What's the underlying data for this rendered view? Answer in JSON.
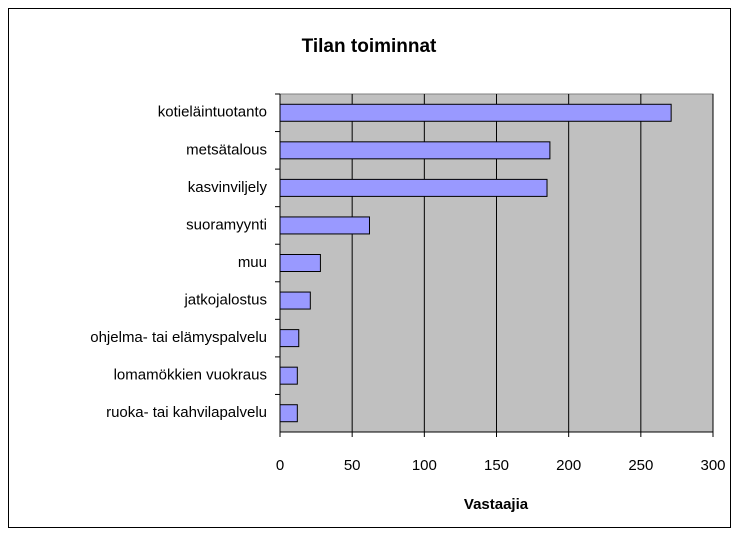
{
  "chart_data": {
    "type": "barh",
    "title": "Tilan toiminnat",
    "x_label": "Vastaajia",
    "categories": [
      "kotieläintuotanto",
      "metsätalous",
      "kasvinviljely",
      "suoramyynti",
      "muu",
      "jatkojalostus",
      "ohjelma- tai elämyspalvelu",
      "lomamökkien vuokraus",
      "ruoka- tai kahvilapalvelu"
    ],
    "values": [
      271,
      187,
      185,
      62,
      28,
      21,
      13,
      12,
      12
    ],
    "color": "#9999ff",
    "xlim": [
      0,
      300
    ],
    "xticks": [
      0,
      50,
      100,
      150,
      200,
      250,
      300
    ],
    "grid": true
  }
}
